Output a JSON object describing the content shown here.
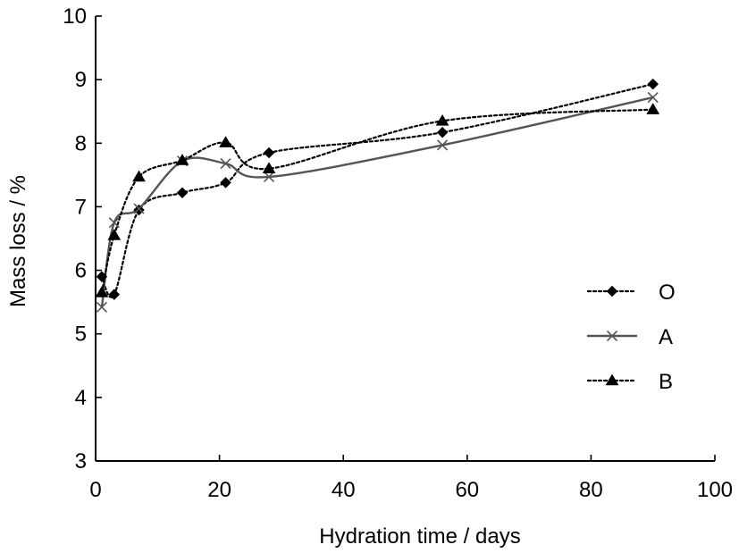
{
  "chart_data": {
    "type": "line",
    "xlabel": "Hydration time / days",
    "ylabel": "Mass loss / %",
    "xlim": [
      0,
      100
    ],
    "ylim": [
      3,
      10
    ],
    "x_ticks": [
      0,
      20,
      40,
      60,
      80,
      100
    ],
    "y_ticks": [
      3,
      4,
      5,
      6,
      7,
      8,
      9,
      10
    ],
    "grid": false,
    "legend_position": "right",
    "series": [
      {
        "name": "O",
        "marker": "diamond",
        "line": "dotted",
        "color": "#000000",
        "x": [
          1,
          3,
          7,
          14,
          21,
          28,
          56,
          90
        ],
        "y": [
          5.9,
          5.62,
          6.95,
          7.22,
          7.38,
          7.85,
          8.17,
          8.93
        ]
      },
      {
        "name": "A",
        "marker": "x",
        "line": "solid",
        "color": "#555555",
        "x": [
          1,
          3,
          7,
          14,
          21,
          28,
          56,
          90
        ],
        "y": [
          5.42,
          6.75,
          6.97,
          7.72,
          7.68,
          7.47,
          7.97,
          8.72
        ]
      },
      {
        "name": "B",
        "marker": "triangle",
        "line": "dotted",
        "color": "#000000",
        "x": [
          1,
          3,
          7,
          14,
          21,
          28,
          56,
          90
        ],
        "y": [
          5.65,
          6.55,
          7.47,
          7.73,
          8.01,
          7.6,
          8.35,
          8.53
        ]
      }
    ]
  }
}
